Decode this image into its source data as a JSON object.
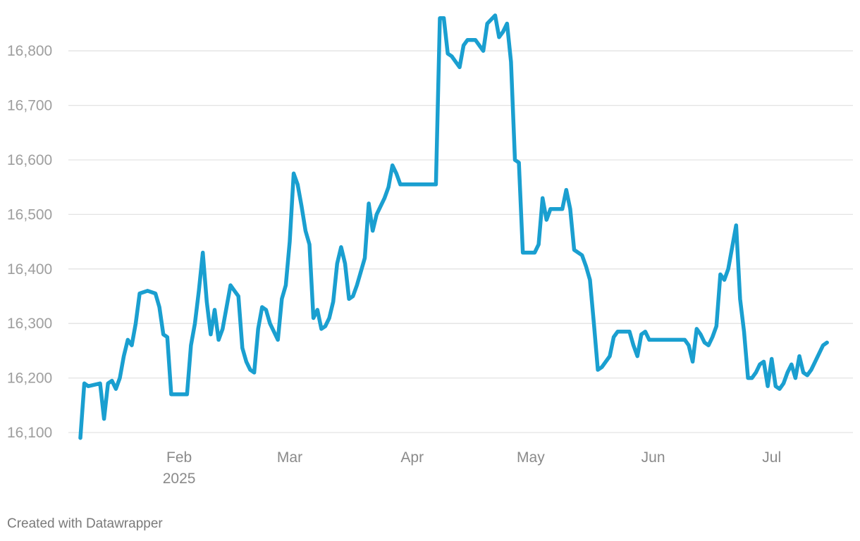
{
  "chart_data": {
    "type": "line",
    "title": "",
    "xlabel": "",
    "ylabel": "",
    "ylim": [
      16090,
      16870
    ],
    "xlim": [
      "2025-01-07",
      "2025-07-18"
    ],
    "grid": true,
    "y_ticks": [
      "16,100",
      "16,200",
      "16,300",
      "16,400",
      "16,500",
      "16,600",
      "16,700",
      "16,800"
    ],
    "y_tick_values": [
      16100,
      16200,
      16300,
      16400,
      16500,
      16600,
      16700,
      16800
    ],
    "x_ticks": [
      {
        "date": "2025-02-01",
        "label": "Feb",
        "sublabel": "2025"
      },
      {
        "date": "2025-03-01",
        "label": "Mar",
        "sublabel": ""
      },
      {
        "date": "2025-04-01",
        "label": "Apr",
        "sublabel": ""
      },
      {
        "date": "2025-05-01",
        "label": "May",
        "sublabel": ""
      },
      {
        "date": "2025-06-01",
        "label": "Jun",
        "sublabel": ""
      },
      {
        "date": "2025-07-01",
        "label": "Jul",
        "sublabel": ""
      }
    ],
    "series": [
      {
        "color": "#1a9fd0",
        "points": [
          [
            "2025-01-07",
            16090
          ],
          [
            "2025-01-08",
            16190
          ],
          [
            "2025-01-09",
            16185
          ],
          [
            "2025-01-12",
            16190
          ],
          [
            "2025-01-13",
            16125
          ],
          [
            "2025-01-14",
            16190
          ],
          [
            "2025-01-15",
            16195
          ],
          [
            "2025-01-16",
            16180
          ],
          [
            "2025-01-17",
            16200
          ],
          [
            "2025-01-18",
            16240
          ],
          [
            "2025-01-19",
            16270
          ],
          [
            "2025-01-20",
            16260
          ],
          [
            "2025-01-21",
            16300
          ],
          [
            "2025-01-22",
            16355
          ],
          [
            "2025-01-24",
            16360
          ],
          [
            "2025-01-26",
            16355
          ],
          [
            "2025-01-27",
            16330
          ],
          [
            "2025-01-28",
            16280
          ],
          [
            "2025-01-29",
            16275
          ],
          [
            "2025-01-30",
            16170
          ],
          [
            "2025-02-03",
            16170
          ],
          [
            "2025-02-04",
            16260
          ],
          [
            "2025-02-05",
            16300
          ],
          [
            "2025-02-06",
            16360
          ],
          [
            "2025-02-07",
            16430
          ],
          [
            "2025-02-08",
            16340
          ],
          [
            "2025-02-09",
            16280
          ],
          [
            "2025-02-10",
            16325
          ],
          [
            "2025-02-11",
            16270
          ],
          [
            "2025-02-12",
            16290
          ],
          [
            "2025-02-13",
            16330
          ],
          [
            "2025-02-14",
            16370
          ],
          [
            "2025-02-15",
            16360
          ],
          [
            "2025-02-16",
            16350
          ],
          [
            "2025-02-17",
            16255
          ],
          [
            "2025-02-18",
            16230
          ],
          [
            "2025-02-19",
            16215
          ],
          [
            "2025-02-20",
            16210
          ],
          [
            "2025-02-21",
            16290
          ],
          [
            "2025-02-22",
            16330
          ],
          [
            "2025-02-23",
            16325
          ],
          [
            "2025-02-24",
            16300
          ],
          [
            "2025-02-25",
            16285
          ],
          [
            "2025-02-26",
            16270
          ],
          [
            "2025-02-27",
            16345
          ],
          [
            "2025-02-28",
            16370
          ],
          [
            "2025-03-01",
            16450
          ],
          [
            "2025-03-02",
            16575
          ],
          [
            "2025-03-03",
            16555
          ],
          [
            "2025-03-04",
            16515
          ],
          [
            "2025-03-05",
            16470
          ],
          [
            "2025-03-06",
            16445
          ],
          [
            "2025-03-07",
            16310
          ],
          [
            "2025-03-08",
            16325
          ],
          [
            "2025-03-09",
            16290
          ],
          [
            "2025-03-10",
            16295
          ],
          [
            "2025-03-11",
            16310
          ],
          [
            "2025-03-12",
            16340
          ],
          [
            "2025-03-13",
            16410
          ],
          [
            "2025-03-14",
            16440
          ],
          [
            "2025-03-15",
            16410
          ],
          [
            "2025-03-16",
            16345
          ],
          [
            "2025-03-17",
            16350
          ],
          [
            "2025-03-18",
            16370
          ],
          [
            "2025-03-19",
            16395
          ],
          [
            "2025-03-20",
            16420
          ],
          [
            "2025-03-21",
            16520
          ],
          [
            "2025-03-22",
            16470
          ],
          [
            "2025-03-23",
            16500
          ],
          [
            "2025-03-24",
            16515
          ],
          [
            "2025-03-25",
            16530
          ],
          [
            "2025-03-26",
            16550
          ],
          [
            "2025-03-27",
            16590
          ],
          [
            "2025-03-28",
            16575
          ],
          [
            "2025-03-29",
            16555
          ],
          [
            "2025-04-07",
            16555
          ],
          [
            "2025-04-08",
            16860
          ],
          [
            "2025-04-09",
            16860
          ],
          [
            "2025-04-10",
            16795
          ],
          [
            "2025-04-11",
            16790
          ],
          [
            "2025-04-12",
            16780
          ],
          [
            "2025-04-13",
            16770
          ],
          [
            "2025-04-14",
            16810
          ],
          [
            "2025-04-15",
            16820
          ],
          [
            "2025-04-17",
            16820
          ],
          [
            "2025-04-18",
            16810
          ],
          [
            "2025-04-19",
            16800
          ],
          [
            "2025-04-20",
            16850
          ],
          [
            "2025-04-22",
            16865
          ],
          [
            "2025-04-23",
            16825
          ],
          [
            "2025-04-24",
            16835
          ],
          [
            "2025-04-25",
            16850
          ],
          [
            "2025-04-26",
            16780
          ],
          [
            "2025-04-27",
            16600
          ],
          [
            "2025-04-28",
            16595
          ],
          [
            "2025-04-29",
            16430
          ],
          [
            "2025-05-02",
            16430
          ],
          [
            "2025-05-03",
            16445
          ],
          [
            "2025-05-04",
            16530
          ],
          [
            "2025-05-05",
            16490
          ],
          [
            "2025-05-06",
            16510
          ],
          [
            "2025-05-09",
            16510
          ],
          [
            "2025-05-10",
            16545
          ],
          [
            "2025-05-11",
            16510
          ],
          [
            "2025-05-12",
            16435
          ],
          [
            "2025-05-14",
            16425
          ],
          [
            "2025-05-15",
            16405
          ],
          [
            "2025-05-16",
            16380
          ],
          [
            "2025-05-17",
            16300
          ],
          [
            "2025-05-18",
            16215
          ],
          [
            "2025-05-19",
            16220
          ],
          [
            "2025-05-21",
            16240
          ],
          [
            "2025-05-22",
            16275
          ],
          [
            "2025-05-23",
            16285
          ],
          [
            "2025-05-26",
            16285
          ],
          [
            "2025-05-27",
            16260
          ],
          [
            "2025-05-28",
            16240
          ],
          [
            "2025-05-29",
            16280
          ],
          [
            "2025-05-30",
            16285
          ],
          [
            "2025-05-31",
            16270
          ],
          [
            "2025-06-09",
            16270
          ],
          [
            "2025-06-10",
            16260
          ],
          [
            "2025-06-11",
            16230
          ],
          [
            "2025-06-12",
            16290
          ],
          [
            "2025-06-13",
            16280
          ],
          [
            "2025-06-14",
            16265
          ],
          [
            "2025-06-15",
            16260
          ],
          [
            "2025-06-16",
            16275
          ],
          [
            "2025-06-17",
            16295
          ],
          [
            "2025-06-18",
            16390
          ],
          [
            "2025-06-19",
            16380
          ],
          [
            "2025-06-20",
            16400
          ],
          [
            "2025-06-21",
            16440
          ],
          [
            "2025-06-22",
            16480
          ],
          [
            "2025-06-23",
            16345
          ],
          [
            "2025-06-24",
            16285
          ],
          [
            "2025-06-25",
            16200
          ],
          [
            "2025-06-26",
            16200
          ],
          [
            "2025-06-27",
            16210
          ],
          [
            "2025-06-28",
            16225
          ],
          [
            "2025-06-29",
            16230
          ],
          [
            "2025-06-30",
            16185
          ],
          [
            "2025-07-01",
            16235
          ],
          [
            "2025-07-02",
            16185
          ],
          [
            "2025-07-03",
            16180
          ],
          [
            "2025-07-04",
            16190
          ],
          [
            "2025-07-05",
            16210
          ],
          [
            "2025-07-06",
            16225
          ],
          [
            "2025-07-07",
            16200
          ],
          [
            "2025-07-08",
            16240
          ],
          [
            "2025-07-09",
            16210
          ],
          [
            "2025-07-10",
            16205
          ],
          [
            "2025-07-11",
            16215
          ],
          [
            "2025-07-12",
            16230
          ],
          [
            "2025-07-13",
            16245
          ],
          [
            "2025-07-14",
            16260
          ],
          [
            "2025-07-15",
            16265
          ]
        ]
      }
    ]
  },
  "footer": {
    "credit": "Created with Datawrapper"
  }
}
